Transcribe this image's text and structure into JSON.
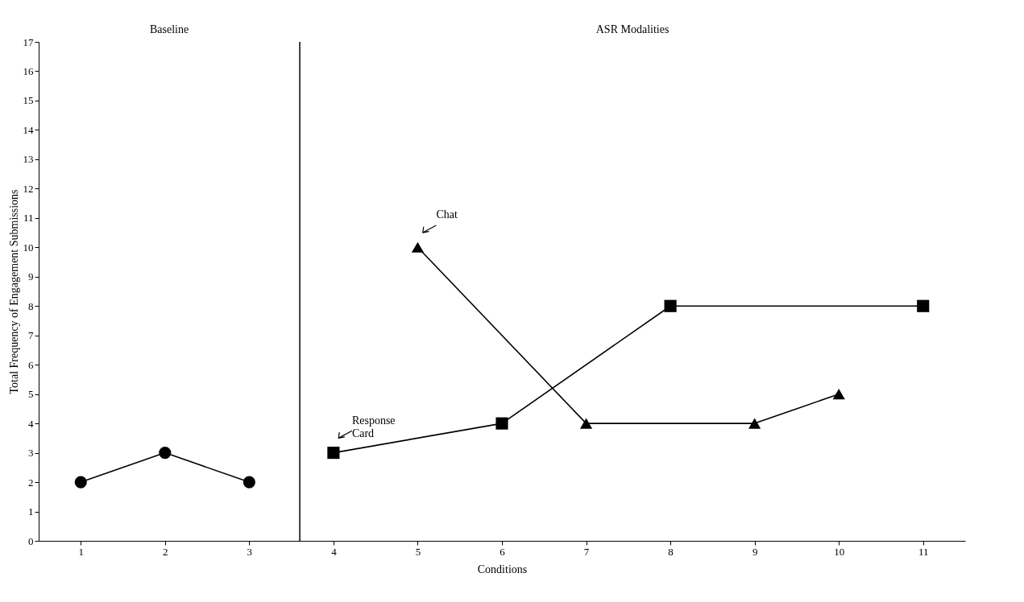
{
  "chart_data": {
    "type": "line",
    "xlabel": "Conditions",
    "ylabel": "Total Frequency of Engagement Submissions",
    "xlim": [
      0.5,
      11.5
    ],
    "xticks": [
      1,
      2,
      3,
      4,
      5,
      6,
      7,
      8,
      9,
      10,
      11
    ],
    "ylim": [
      0,
      17
    ],
    "yticks": [
      0,
      1,
      2,
      3,
      4,
      5,
      6,
      7,
      8,
      9,
      10,
      11,
      12,
      13,
      14,
      15,
      16,
      17
    ],
    "grid": false,
    "line_style": "solid",
    "series": [
      {
        "color": "#000000",
        "marker": "circle",
        "x": [
          1,
          2,
          3
        ],
        "values": [
          2,
          3,
          2
        ]
      },
      {
        "name": "Response Card",
        "color": "#000000",
        "marker": "square",
        "x": [
          4,
          6,
          8,
          11
        ],
        "values": [
          3,
          4,
          8,
          8
        ]
      },
      {
        "name": "Chat",
        "color": "#000000",
        "marker": "triangle",
        "x": [
          5,
          7,
          9,
          10
        ],
        "values": [
          10,
          4,
          4,
          5
        ]
      }
    ],
    "ref_lines": [
      {
        "axis": "x",
        "value": 3.6,
        "color": "#000000"
      }
    ],
    "annotations": [
      "Baseline",
      "ASR Modalities"
    ]
  }
}
